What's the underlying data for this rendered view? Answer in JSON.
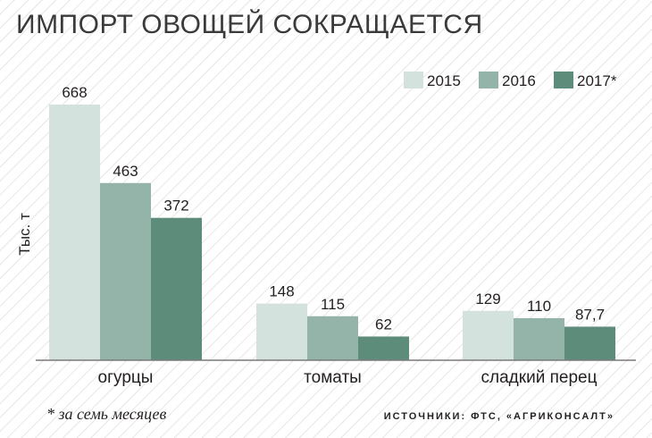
{
  "title": "ИМПОРТ ОВОЩЕЙ СОКРАЩАЕТСЯ",
  "footnote": "* за семь месяцев",
  "source": "ИСТОЧНИКИ: ФТС, «АГРИКОНСАЛТ»",
  "colors": {
    "background_stripe": "#d9d9d9",
    "s2015": "#d3e2dd",
    "s2016": "#95b4a9",
    "s2017": "#5e8c7b",
    "axis": "#7a7a7a"
  },
  "chart_data": {
    "type": "bar",
    "title": "ИМПОРТ ОВОЩЕЙ СОКРАЩАЕТСЯ",
    "ylabel": "Тыс. т",
    "xlabel": "",
    "categories": [
      "огурцы",
      "томаты",
      "сладкий перец"
    ],
    "series": [
      {
        "name": "2015",
        "values": [
          668,
          148,
          129
        ],
        "labels": [
          "668",
          "148",
          "129"
        ]
      },
      {
        "name": "2016",
        "values": [
          463,
          115,
          110
        ],
        "labels": [
          "463",
          "115",
          "110"
        ]
      },
      {
        "name": "2017*",
        "values": [
          372,
          62,
          87.7
        ],
        "labels": [
          "372",
          "62",
          "87,7"
        ]
      }
    ],
    "ylim": [
      0,
      668
    ],
    "grid": false,
    "legend": "top-right"
  }
}
